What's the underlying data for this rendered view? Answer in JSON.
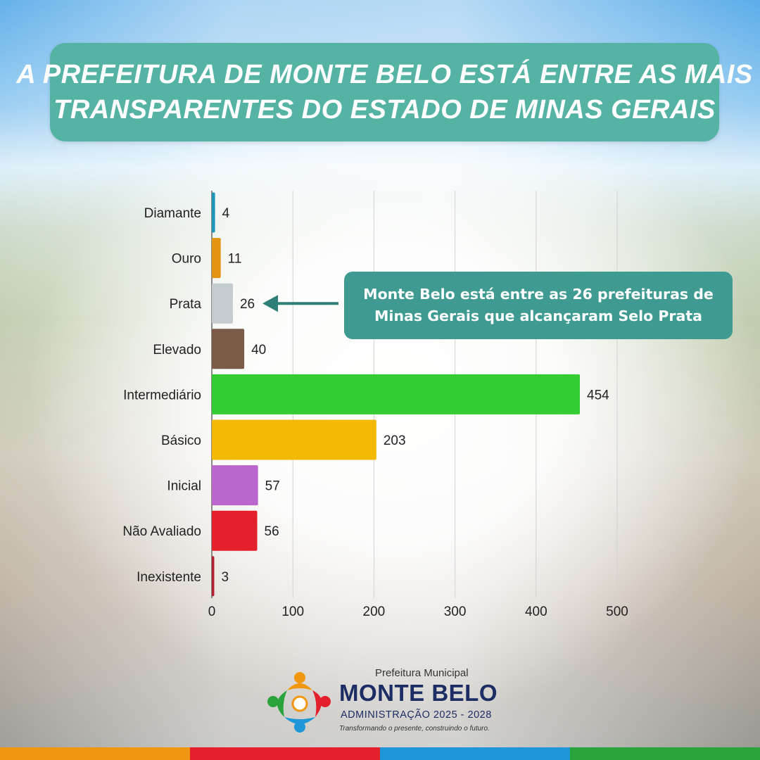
{
  "header": {
    "title_line1": "A PREFEITURA DE MONTE BELO ESTÁ ENTRE AS MAIS",
    "title_line2": "TRANSPARENTES DO ESTADO DE MINAS GERAIS"
  },
  "callout": {
    "line1": "Monte Belo está entre as 26 prefeituras de",
    "line2": "Minas Gerais que alcançaram Selo Prata",
    "points_to": "Prata"
  },
  "chart_data": {
    "type": "bar",
    "orientation": "horizontal",
    "title": "",
    "xlabel": "",
    "ylabel": "",
    "xlim": [
      0,
      520
    ],
    "xticks": [
      0,
      100,
      200,
      300,
      400,
      500
    ],
    "grid": true,
    "categories": [
      "Diamante",
      "Ouro",
      "Prata",
      "Elevado",
      "Intermediário",
      "Básico",
      "Inicial",
      "Não Avaliado",
      "Inexistente"
    ],
    "values": [
      4,
      11,
      26,
      40,
      454,
      203,
      57,
      56,
      3
    ],
    "colors": [
      "#1f96b8",
      "#e39410",
      "#c5cccf",
      "#7b5a48",
      "#33cc33",
      "#f3b800",
      "#bb66cc",
      "#e3202c",
      "#b22030"
    ]
  },
  "logo": {
    "kicker": "Prefeitura Municipal",
    "name": "MONTE BELO",
    "admin": "ADMINISTRAÇÃO 2025 - 2028",
    "slogan": "Transformando o presente, construindo o futuro."
  },
  "footer_colors": [
    "#f0960f",
    "#e3202c",
    "#1e96d8",
    "#2aa33d"
  ]
}
